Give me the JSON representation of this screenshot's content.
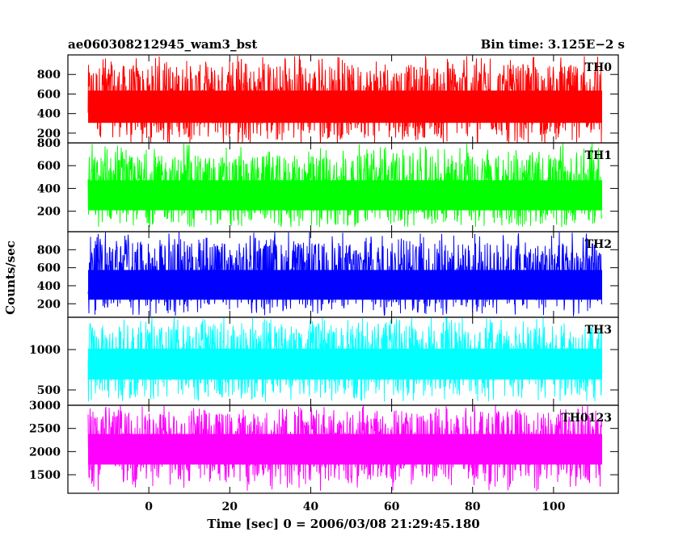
{
  "header": {
    "left_title": "ae060308212945_wam3_bst",
    "right_title": "Bin time: 3.125E−2 s"
  },
  "chart_data": {
    "type": "line",
    "title": "ae060308212945_wam3_bst",
    "subtitle": "Bin time: 3.125E−2 s",
    "xlabel": "Time [sec] 0 = 2006/03/08 21:29:45.180",
    "ylabel": "Counts/sec",
    "xlim": [
      -20,
      116
    ],
    "x_ticks": [
      0,
      20,
      40,
      60,
      80,
      100
    ],
    "x_range": [
      -15,
      112
    ],
    "grid": false,
    "panels": [
      {
        "name": "TH0",
        "color": "#ff0000",
        "ylim": [
          100,
          1000
        ],
        "y_ticks": [
          200,
          400,
          600,
          800
        ],
        "mean": 470,
        "low": 150,
        "high": 900,
        "spike_max": 1000,
        "dip_min": 80
      },
      {
        "name": "TH1",
        "color": "#00ff00",
        "ylim": [
          20,
          800
        ],
        "y_ticks": [
          200,
          400,
          600,
          800
        ],
        "mean": 340,
        "low": 90,
        "high": 690,
        "spike_max": 800,
        "dip_min": 60
      },
      {
        "name": "TH2",
        "color": "#0000ff",
        "ylim": [
          50,
          1000
        ],
        "y_ticks": [
          200,
          400,
          600,
          800
        ],
        "mean": 410,
        "low": 130,
        "high": 880,
        "spike_max": 1000,
        "dip_min": 60
      },
      {
        "name": "TH3",
        "color": "#00ffff",
        "ylim": [
          310,
          1400
        ],
        "y_ticks": [
          500,
          1000
        ],
        "mean": 820,
        "low": 430,
        "high": 1300,
        "spike_max": 1400,
        "dip_min": 350
      },
      {
        "name": "TH0123",
        "color": "#ff00ff",
        "ylim": [
          1100,
          3000
        ],
        "y_ticks": [
          1500,
          2000,
          2500,
          3000
        ],
        "mean": 2050,
        "low": 1350,
        "high": 2850,
        "spike_max": 3000,
        "dip_min": 1150
      }
    ]
  }
}
